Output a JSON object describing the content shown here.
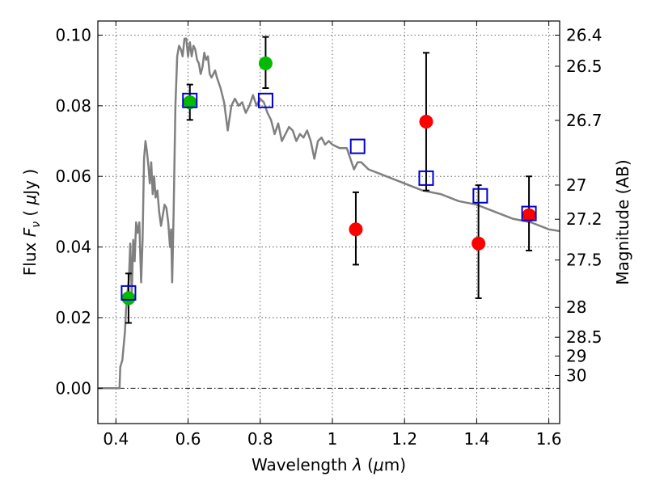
{
  "chart_data": {
    "type": "scatter",
    "title": "",
    "xlabel": "Wavelength  λ (μm)",
    "ylabel": "Flux  F_ν  ( μJy )",
    "ylabel_parts": {
      "prefix": "Flux  ",
      "symbol": "F",
      "subscript": "ν",
      "paren_open": "  ( ",
      "unit_greek": "μ",
      "unit": "Jy",
      "paren_close": " )"
    },
    "xlabel_parts": {
      "prefix": "Wavelength  ",
      "symbol": "λ",
      "paren_open": " (",
      "unit_greek": "μ",
      "unit": "m)"
    },
    "y2label": "Magnitude (AB)",
    "xlim": [
      0.35,
      1.63
    ],
    "ylim": [
      -0.01,
      0.104
    ],
    "grid": true,
    "xticks": [
      0.4,
      0.6,
      0.8,
      1.0,
      1.2,
      1.4,
      1.6
    ],
    "xtick_labels": [
      "0.4",
      "0.6",
      "0.8",
      "1",
      "1.2",
      "1.4",
      "1.6"
    ],
    "yticks": [
      0.0,
      0.02,
      0.04,
      0.06,
      0.08,
      0.1
    ],
    "ytick_labels": [
      "0.00",
      "0.02",
      "0.04",
      "0.06",
      "0.08",
      "0.10"
    ],
    "y2ticks": [
      {
        "label": "26.4",
        "value": 26.4
      },
      {
        "label": "26.5",
        "value": 26.5
      },
      {
        "label": "26.7",
        "value": 26.7
      },
      {
        "label": "27",
        "value": 27.0
      },
      {
        "label": "27.2",
        "value": 27.2
      },
      {
        "label": "27.5",
        "value": 27.5
      },
      {
        "label": "28",
        "value": 28.0
      },
      {
        "label": "28.5",
        "value": 28.5
      },
      {
        "label": "29",
        "value": 29.0
      },
      {
        "label": "30",
        "value": 30.0
      }
    ],
    "colors": {
      "model": "#808080",
      "green": "#00bb00",
      "red": "#ff0000",
      "square": "#0000cc",
      "errorbar": "#000000"
    },
    "series": [
      {
        "kind": "line",
        "color": "#808080",
        "x": [
          0.35,
          0.41,
          0.412,
          0.418,
          0.425,
          0.428,
          0.432,
          0.436,
          0.44,
          0.444,
          0.448,
          0.452,
          0.456,
          0.46,
          0.465,
          0.47,
          0.474,
          0.478,
          0.482,
          0.486,
          0.49,
          0.494,
          0.498,
          0.502,
          0.506,
          0.51,
          0.515,
          0.52,
          0.525,
          0.53,
          0.535,
          0.54,
          0.545,
          0.55,
          0.553,
          0.556,
          0.56,
          0.565,
          0.57,
          0.575,
          0.58,
          0.585,
          0.59,
          0.595,
          0.6,
          0.605,
          0.61,
          0.615,
          0.62,
          0.625,
          0.63,
          0.635,
          0.64,
          0.645,
          0.65,
          0.655,
          0.66,
          0.665,
          0.67,
          0.675,
          0.68,
          0.69,
          0.7,
          0.71,
          0.72,
          0.73,
          0.74,
          0.75,
          0.76,
          0.77,
          0.78,
          0.79,
          0.8,
          0.81,
          0.82,
          0.83,
          0.84,
          0.85,
          0.86,
          0.87,
          0.88,
          0.89,
          0.9,
          0.91,
          0.92,
          0.93,
          0.94,
          0.95,
          0.96,
          0.97,
          0.98,
          0.99,
          1.0,
          1.02,
          1.04,
          1.06,
          1.07,
          1.08,
          1.1,
          1.15,
          1.2,
          1.25,
          1.3,
          1.35,
          1.4,
          1.45,
          1.5,
          1.55,
          1.6,
          1.63
        ],
        "y": [
          0.0,
          0.0,
          0.006,
          0.008,
          0.016,
          0.022,
          0.027,
          0.031,
          0.041,
          0.026,
          0.042,
          0.036,
          0.047,
          0.044,
          0.047,
          0.03,
          0.042,
          0.065,
          0.07,
          0.067,
          0.063,
          0.058,
          0.064,
          0.055,
          0.06,
          0.054,
          0.056,
          0.05,
          0.046,
          0.049,
          0.052,
          0.051,
          0.047,
          0.04,
          0.045,
          0.03,
          0.05,
          0.08,
          0.094,
          0.097,
          0.096,
          0.094,
          0.099,
          0.099,
          0.094,
          0.098,
          0.094,
          0.097,
          0.096,
          0.093,
          0.092,
          0.089,
          0.091,
          0.095,
          0.093,
          0.094,
          0.089,
          0.088,
          0.089,
          0.09,
          0.088,
          0.085,
          0.081,
          0.073,
          0.08,
          0.082,
          0.08,
          0.081,
          0.078,
          0.08,
          0.083,
          0.08,
          0.082,
          0.081,
          0.078,
          0.076,
          0.072,
          0.075,
          0.07,
          0.072,
          0.074,
          0.073,
          0.07,
          0.072,
          0.071,
          0.073,
          0.07,
          0.065,
          0.07,
          0.071,
          0.069,
          0.07,
          0.069,
          0.068,
          0.068,
          0.062,
          0.064,
          0.064,
          0.062,
          0.06,
          0.058,
          0.056,
          0.055,
          0.053,
          0.052,
          0.05,
          0.048,
          0.047,
          0.045,
          0.0445
        ]
      },
      {
        "kind": "points",
        "marker": "circle",
        "color": "#00bb00",
        "x": [
          0.435,
          0.605,
          0.815
        ],
        "y": [
          0.0255,
          0.081,
          0.092
        ],
        "err": [
          [
            0.007,
            0.007
          ],
          [
            0.005,
            0.005
          ],
          [
            0.007,
            0.0075
          ]
        ]
      },
      {
        "kind": "points",
        "marker": "circle",
        "color": "#ff0000",
        "x": [
          1.065,
          1.26,
          1.405,
          1.545
        ],
        "y": [
          0.045,
          0.0755,
          0.041,
          0.049
        ],
        "err": [
          [
            0.01,
            0.0105
          ],
          [
            0.0195,
            0.0195
          ],
          [
            0.0155,
            0.0165
          ],
          [
            0.01,
            0.011
          ]
        ]
      },
      {
        "kind": "points",
        "marker": "square",
        "color": "#0000cc",
        "x": [
          0.435,
          0.605,
          0.815,
          1.07,
          1.26,
          1.41,
          1.545
        ],
        "y": [
          0.027,
          0.0815,
          0.0815,
          0.0685,
          0.0595,
          0.0545,
          0.0495
        ]
      }
    ]
  }
}
